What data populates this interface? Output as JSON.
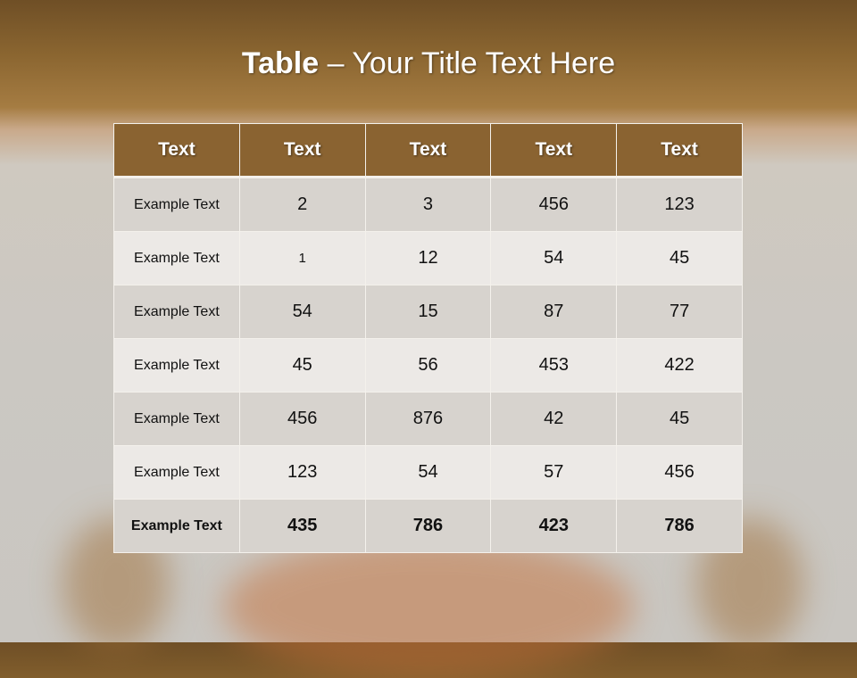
{
  "slide": {
    "title_bold": "Table",
    "title_rest": " – Your Title Text Here"
  },
  "table": {
    "headers": [
      "Text",
      "Text",
      "Text",
      "Text",
      "Text"
    ],
    "rows": [
      [
        "Example Text",
        "2",
        "3",
        "456",
        "123"
      ],
      [
        "Example Text",
        "1",
        "12",
        "54",
        "45"
      ],
      [
        "Example Text",
        "54",
        "15",
        "87",
        "77"
      ],
      [
        "Example Text",
        "45",
        "56",
        "453",
        "422"
      ],
      [
        "Example Text",
        "456",
        "876",
        "42",
        "45"
      ],
      [
        "Example Text",
        "123",
        "54",
        "57",
        "456"
      ],
      [
        "Example Text",
        "435",
        "786",
        "423",
        "786"
      ]
    ]
  },
  "colors": {
    "header": "#8a6331",
    "row_dark": "#d7d3ce",
    "row_light": "#ece9e6"
  }
}
